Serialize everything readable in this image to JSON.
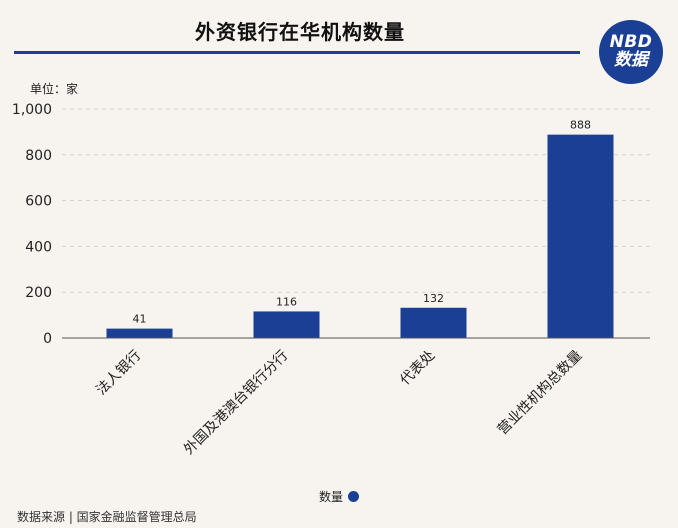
{
  "header": {
    "title": "外资银行在华机构数量",
    "logo_top": "NBD",
    "logo_bottom": "数据"
  },
  "unit_label": "单位：家",
  "legend_label": "数量",
  "source_text": "数据来源 | 国家金融监督管理总局",
  "colors": {
    "bar": "#1b3f95",
    "accent": "#1b3f95",
    "background": "#f7f4ef",
    "grid": "#cfcfcf"
  },
  "chart_data": {
    "type": "bar",
    "title": "外资银行在华机构数量",
    "categories": [
      "法人银行",
      "外国及港澳台银行分行",
      "代表处",
      "营业性机构总数量"
    ],
    "series": [
      {
        "name": "数量",
        "values": [
          41,
          116,
          132,
          888
        ]
      }
    ],
    "value_labels": [
      "41",
      "116",
      "132",
      "888"
    ],
    "y_ticks": [
      "0",
      "200",
      "400",
      "600",
      "800",
      "1,000"
    ],
    "ylim": [
      0,
      1000
    ],
    "ylabel": "单位：家",
    "grid": true,
    "legend_position": "bottom-center"
  }
}
